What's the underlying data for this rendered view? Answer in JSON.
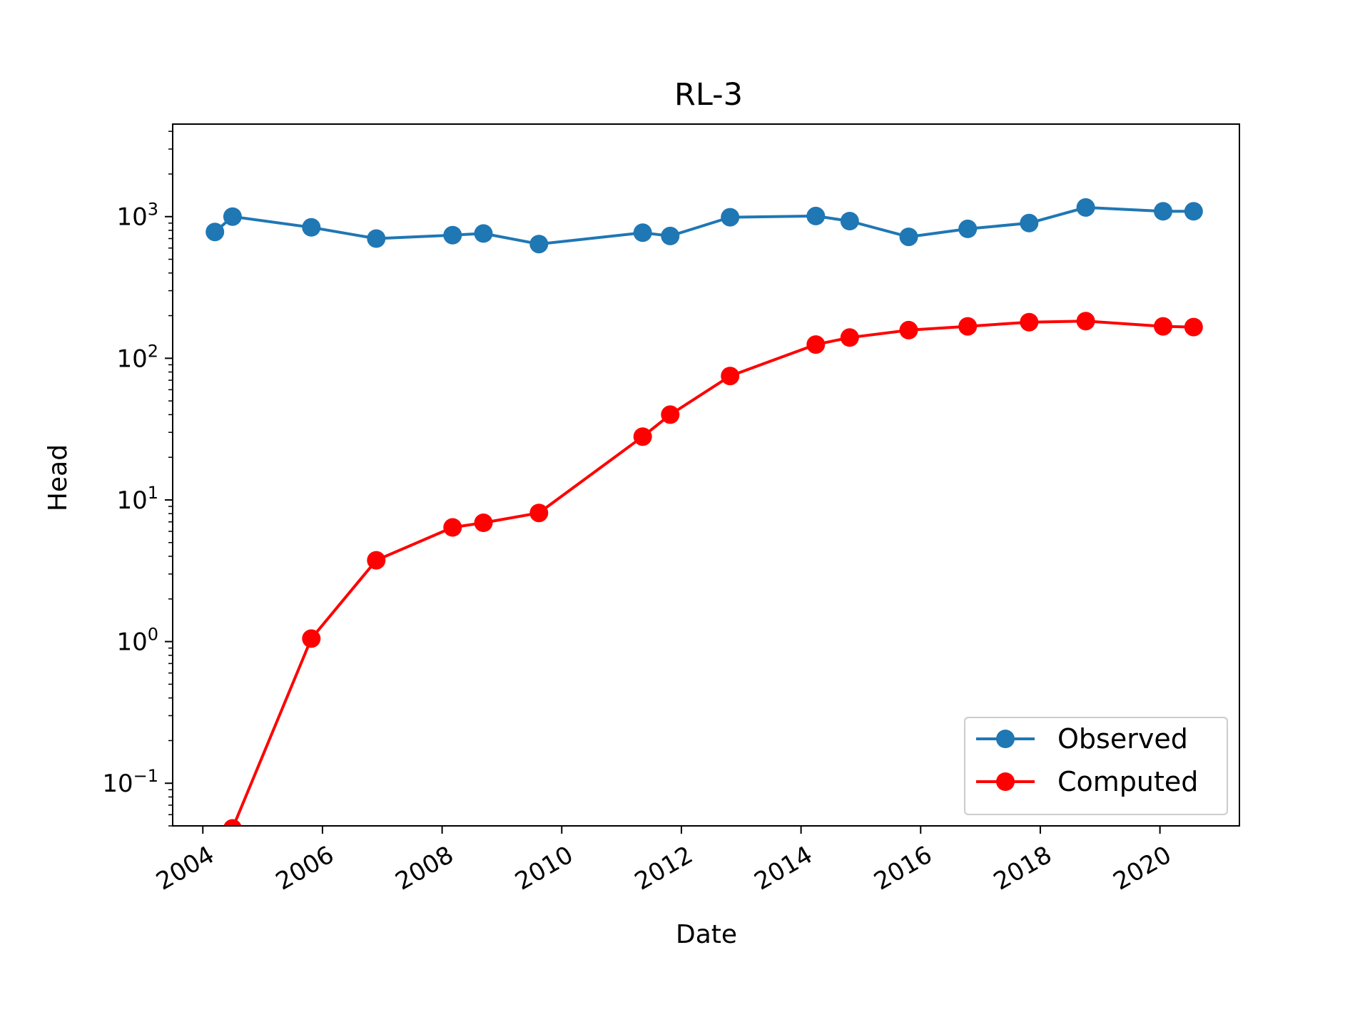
{
  "chart_data": {
    "type": "line",
    "title": "RL-3",
    "xlabel": "Date",
    "ylabel": "Head",
    "yscale": "log",
    "xlim": [
      "2003-07-01",
      "2021-05-01"
    ],
    "ylim": [
      0.05,
      4500
    ],
    "x_ticks": [
      "2004",
      "2006",
      "2008",
      "2010",
      "2012",
      "2014",
      "2016",
      "2018",
      "2020"
    ],
    "y_ticks": [
      {
        "value": 0.1,
        "base": "10",
        "exp": "−1"
      },
      {
        "value": 1,
        "base": "10",
        "exp": "0"
      },
      {
        "value": 10,
        "base": "10",
        "exp": "1"
      },
      {
        "value": 100,
        "base": "10",
        "exp": "2"
      },
      {
        "value": 1000,
        "base": "10",
        "exp": "3"
      }
    ],
    "grid": false,
    "legend_position": "lower right",
    "series": [
      {
        "name": "Observed",
        "color": "#1f77b4",
        "marker": "circle",
        "points": [
          {
            "x": "2004-03-15",
            "y": 780
          },
          {
            "x": "2004-07-01",
            "y": 1000
          },
          {
            "x": "2005-10-25",
            "y": 840
          },
          {
            "x": "2006-11-25",
            "y": 700
          },
          {
            "x": "2008-03-05",
            "y": 740
          },
          {
            "x": "2008-09-10",
            "y": 760
          },
          {
            "x": "2009-08-15",
            "y": 640
          },
          {
            "x": "2011-05-10",
            "y": 770
          },
          {
            "x": "2011-10-25",
            "y": 730
          },
          {
            "x": "2012-10-25",
            "y": 990
          },
          {
            "x": "2014-04-01",
            "y": 1010
          },
          {
            "x": "2014-10-25",
            "y": 930
          },
          {
            "x": "2015-10-20",
            "y": 720
          },
          {
            "x": "2016-10-15",
            "y": 820
          },
          {
            "x": "2017-10-25",
            "y": 900
          },
          {
            "x": "2018-10-05",
            "y": 1160
          },
          {
            "x": "2020-01-20",
            "y": 1090
          },
          {
            "x": "2020-07-25",
            "y": 1090
          }
        ]
      },
      {
        "name": "Computed",
        "color": "#ff0000",
        "marker": "circle",
        "points": [
          {
            "x": "2004-07-01",
            "y": 0.048
          },
          {
            "x": "2005-10-25",
            "y": 1.05
          },
          {
            "x": "2006-11-25",
            "y": 3.75
          },
          {
            "x": "2008-03-05",
            "y": 6.4
          },
          {
            "x": "2008-09-10",
            "y": 6.9
          },
          {
            "x": "2009-08-15",
            "y": 8.1
          },
          {
            "x": "2011-05-10",
            "y": 28
          },
          {
            "x": "2011-10-25",
            "y": 40
          },
          {
            "x": "2012-10-25",
            "y": 75
          },
          {
            "x": "2014-04-01",
            "y": 125
          },
          {
            "x": "2014-10-25",
            "y": 140
          },
          {
            "x": "2015-10-20",
            "y": 158
          },
          {
            "x": "2016-10-15",
            "y": 168
          },
          {
            "x": "2017-10-25",
            "y": 180
          },
          {
            "x": "2018-10-05",
            "y": 183
          },
          {
            "x": "2020-01-20",
            "y": 168
          },
          {
            "x": "2020-07-25",
            "y": 166
          }
        ]
      }
    ]
  }
}
